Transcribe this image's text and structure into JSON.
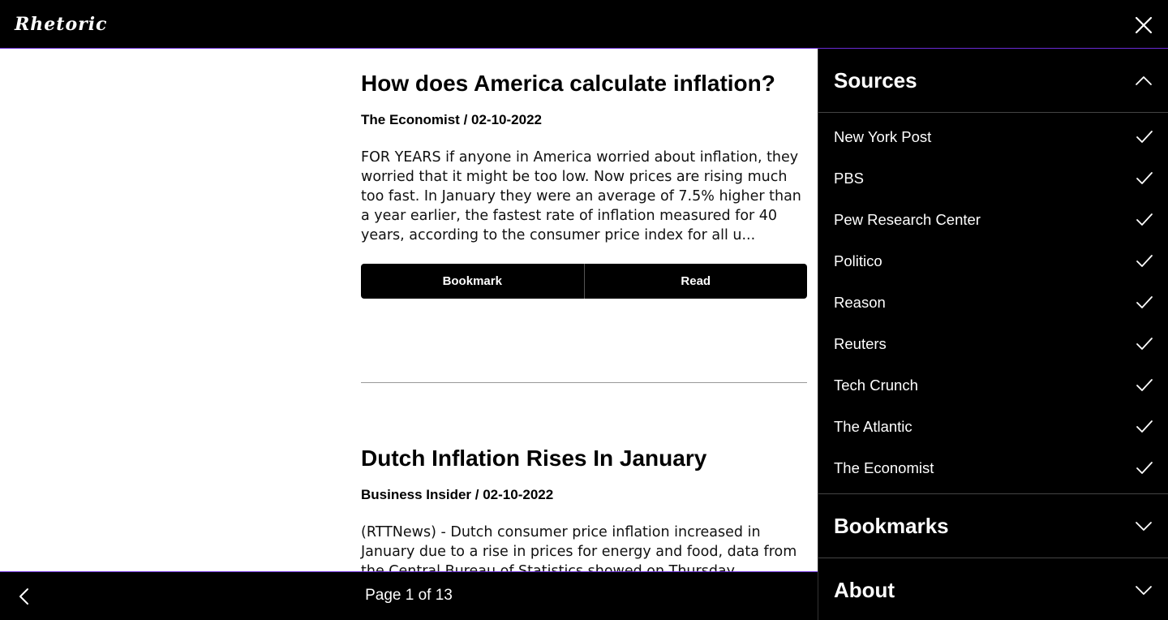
{
  "header": {
    "logo": "Rhetoric"
  },
  "articles": [
    {
      "title": "How does America calculate inflation?",
      "meta": "The Economist / 02-10-2022",
      "excerpt": "FOR YEARS if anyone in America worried about inflation, they worried that it might be too low. Now prices are rising much too fast. In January they were an average of 7.5% higher than a year earlier, the fastest rate of inflation measured for 40 years, according to the consumer price index for all u...",
      "bookmark_label": "Bookmark",
      "read_label": "Read"
    },
    {
      "title": "Dutch Inflation Rises In January",
      "meta": "Business Insider / 02-10-2022",
      "excerpt": "(RTTNews) - Dutch consumer price inflation increased in January due to a rise in prices for energy and food, data from the Central Bureau of Statistics showed on Thursday."
    }
  ],
  "pagination": {
    "label": "Page 1 of 13"
  },
  "sidebar": {
    "sources_title": "Sources",
    "sources": [
      "New York Post",
      "PBS",
      "Pew Research Center",
      "Politico",
      "Reason",
      "Reuters",
      "Tech Crunch",
      "The Atlantic",
      "The Economist"
    ],
    "bookmarks_title": "Bookmarks",
    "about_title": "About"
  }
}
